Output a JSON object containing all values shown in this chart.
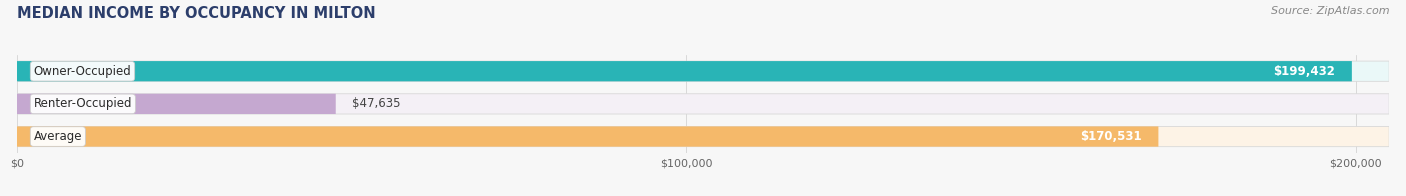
{
  "title": "MEDIAN INCOME BY OCCUPANCY IN MILTON",
  "source": "Source: ZipAtlas.com",
  "categories": [
    "Owner-Occupied",
    "Renter-Occupied",
    "Average"
  ],
  "values": [
    199432,
    47635,
    170531
  ],
  "bar_colors": [
    "#29b4b6",
    "#c5a8d0",
    "#f5b96a"
  ],
  "bar_bg_colors": [
    "#eaf8f8",
    "#f4f0f6",
    "#fdf3e6"
  ],
  "value_labels": [
    "$199,432",
    "$47,635",
    "$170,531"
  ],
  "label_inside": [
    true,
    false,
    true
  ],
  "xlim_max": 205000,
  "xticks": [
    0,
    100000,
    200000
  ],
  "xticklabels": [
    "$0",
    "$100,000",
    "$200,000"
  ],
  "bar_height": 0.62,
  "figsize": [
    14.06,
    1.96
  ],
  "dpi": 100,
  "bg_color": "#f7f7f7",
  "title_fontsize": 10.5,
  "source_fontsize": 8,
  "cat_label_fontsize": 8.5,
  "val_label_fontsize": 8.5,
  "tick_fontsize": 8,
  "title_color": "#2c3e6b",
  "source_color": "#888888"
}
